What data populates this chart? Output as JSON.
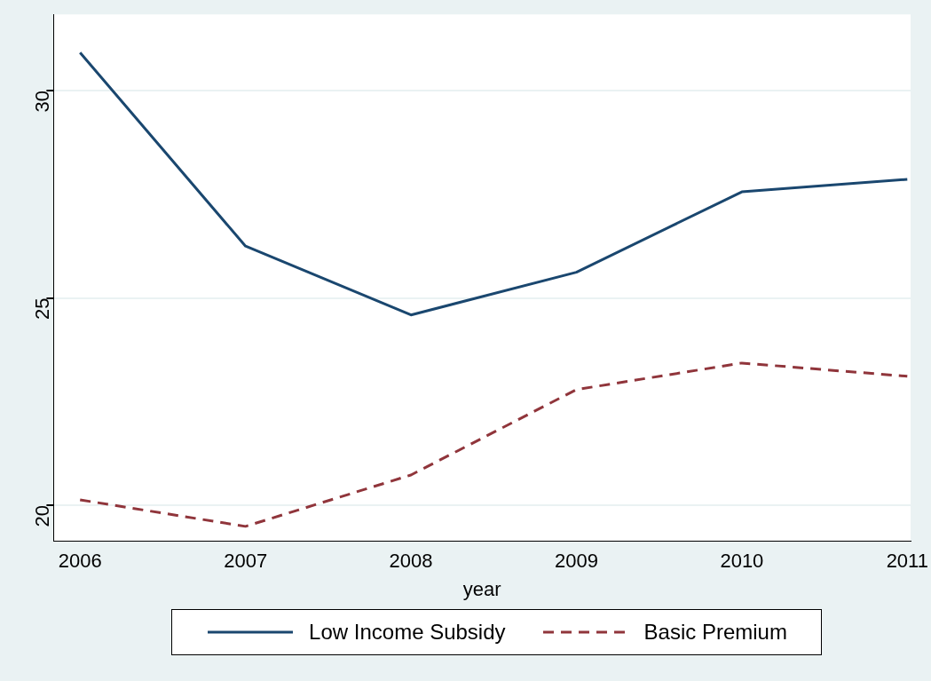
{
  "chart_data": {
    "type": "line",
    "xlabel": "year",
    "x": [
      2006,
      2007,
      2008,
      2009,
      2010,
      2011
    ],
    "series": [
      {
        "name": "Low Income Subsidy",
        "color": "#1a476f",
        "line_style": "solid",
        "values": [
          30.92,
          26.25,
          24.59,
          25.62,
          27.56,
          27.86
        ]
      },
      {
        "name": "Basic Premium",
        "color": "#90353b",
        "line_style": "dashed",
        "values": [
          20.13,
          19.49,
          20.73,
          22.79,
          23.43,
          23.11
        ]
      }
    ],
    "xlim": [
      2005.84,
      2011.02
    ],
    "ylim": [
      19.14,
      31.84
    ],
    "xticks": [
      2006,
      2007,
      2008,
      2009,
      2010,
      2011
    ],
    "yticks": [
      20,
      25,
      30
    ],
    "grid": "y",
    "legend": "bottom",
    "marker": "none"
  }
}
